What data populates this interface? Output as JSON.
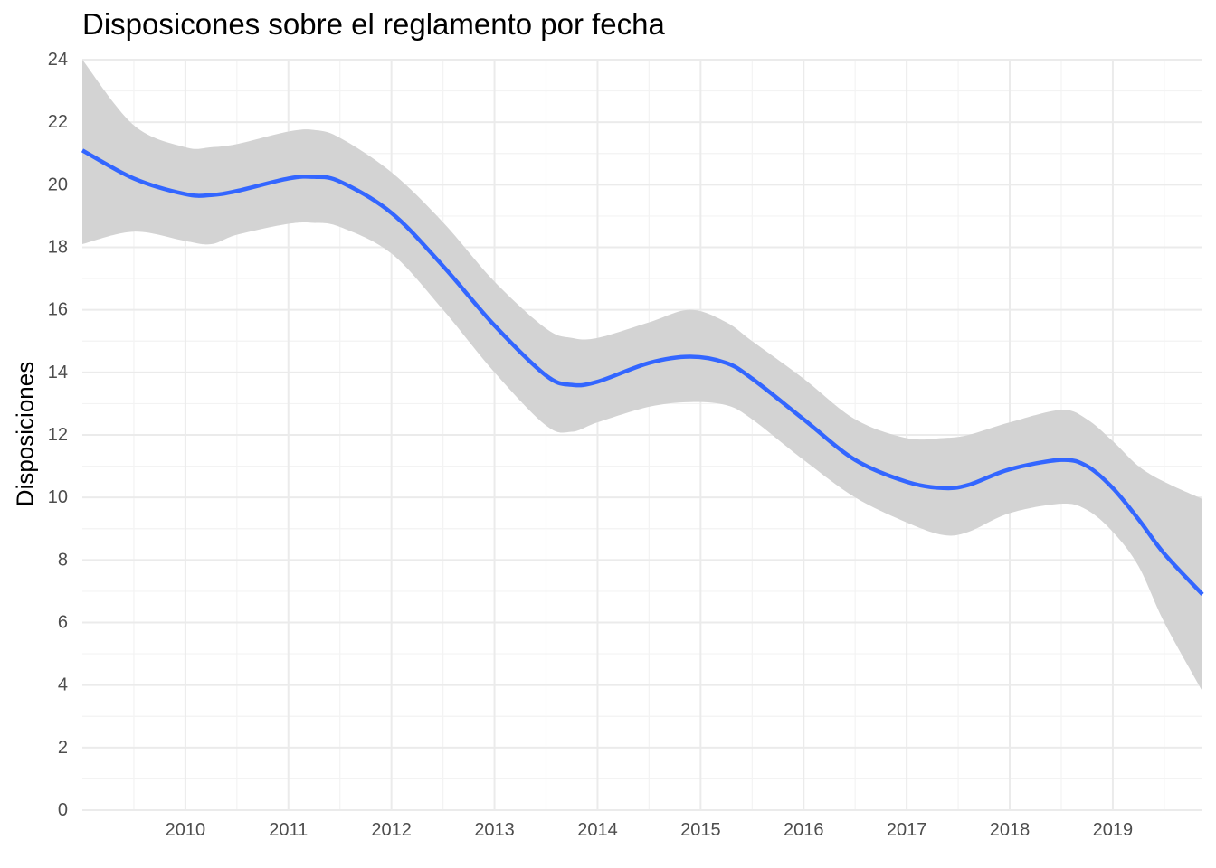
{
  "chart_data": {
    "type": "line",
    "title": "Disposicones sobre el reglamento por fecha",
    "xlabel": "",
    "ylabel": "Disposiciones",
    "x_ticks": [
      "2010",
      "2011",
      "2012",
      "2013",
      "2014",
      "2015",
      "2016",
      "2017",
      "2018",
      "2019"
    ],
    "y_ticks": [
      "0",
      "2",
      "4",
      "6",
      "8",
      "10",
      "12",
      "14",
      "16",
      "18",
      "20",
      "22",
      "24"
    ],
    "xlim": [
      2009.0,
      2019.87
    ],
    "ylim": [
      0,
      24
    ],
    "grid": true,
    "legend": "none",
    "series": [
      {
        "smooth": true,
        "confidence_band": true,
        "color": "#3366FF",
        "band_color": "#D3D3D3",
        "x": [
          2009.0,
          2009.5,
          2010.0,
          2010.25,
          2010.5,
          2011.0,
          2011.25,
          2011.5,
          2012.0,
          2012.5,
          2013.0,
          2013.5,
          2013.75,
          2014.0,
          2014.5,
          2014.9,
          2015.25,
          2015.5,
          2016.0,
          2016.5,
          2017.0,
          2017.35,
          2017.6,
          2018.0,
          2018.5,
          2018.75,
          2019.0,
          2019.25,
          2019.5,
          2019.87
        ],
        "y": [
          21.1,
          20.2,
          19.7,
          19.67,
          19.8,
          20.2,
          20.25,
          20.1,
          19.1,
          17.4,
          15.5,
          13.9,
          13.6,
          13.7,
          14.3,
          14.5,
          14.3,
          13.8,
          12.5,
          11.2,
          10.5,
          10.3,
          10.4,
          10.9,
          11.2,
          11.0,
          10.3,
          9.3,
          8.2,
          6.9
        ],
        "lower": [
          18.1,
          18.5,
          18.2,
          18.1,
          18.4,
          18.75,
          18.78,
          18.65,
          17.8,
          16.0,
          14.0,
          12.3,
          12.1,
          12.4,
          12.9,
          13.05,
          12.95,
          12.5,
          11.2,
          10.0,
          9.2,
          8.8,
          8.9,
          9.5,
          9.8,
          9.6,
          8.9,
          7.8,
          6.0,
          3.8
        ],
        "upper": [
          24.0,
          21.9,
          21.2,
          21.2,
          21.3,
          21.7,
          21.75,
          21.5,
          20.4,
          18.8,
          16.9,
          15.4,
          15.1,
          15.1,
          15.6,
          16.0,
          15.6,
          15.0,
          13.8,
          12.5,
          11.9,
          11.9,
          12.0,
          12.4,
          12.8,
          12.5,
          11.8,
          11.0,
          10.5,
          9.95
        ]
      }
    ]
  }
}
